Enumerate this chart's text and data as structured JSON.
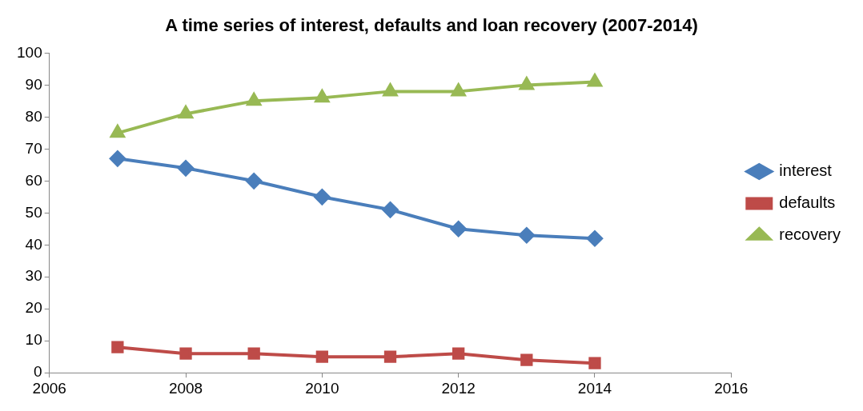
{
  "chart_data": {
    "type": "line",
    "title": "A time series of interest, defaults and loan recovery (2007-2014)",
    "x": [
      2007,
      2008,
      2009,
      2010,
      2011,
      2012,
      2013,
      2014
    ],
    "series": [
      {
        "name": "interest",
        "color": "#4a7ebb",
        "marker": "diamond",
        "values": [
          67,
          64,
          60,
          55,
          51,
          45,
          43,
          42
        ]
      },
      {
        "name": "defaults",
        "color": "#be4b48",
        "marker": "square",
        "values": [
          8,
          6,
          6,
          5,
          5,
          6,
          4,
          3
        ]
      },
      {
        "name": "recovery",
        "color": "#98b954",
        "marker": "triangle",
        "values": [
          75,
          81,
          85,
          86,
          88,
          88,
          90,
          91
        ]
      }
    ],
    "xlim": [
      2006,
      2016
    ],
    "xticks": [
      2006,
      2008,
      2010,
      2012,
      2014,
      2016
    ],
    "ylim": [
      0,
      100
    ],
    "yticks": [
      0,
      10,
      20,
      30,
      40,
      50,
      60,
      70,
      80,
      90,
      100
    ],
    "grid": false,
    "legend": "right"
  }
}
